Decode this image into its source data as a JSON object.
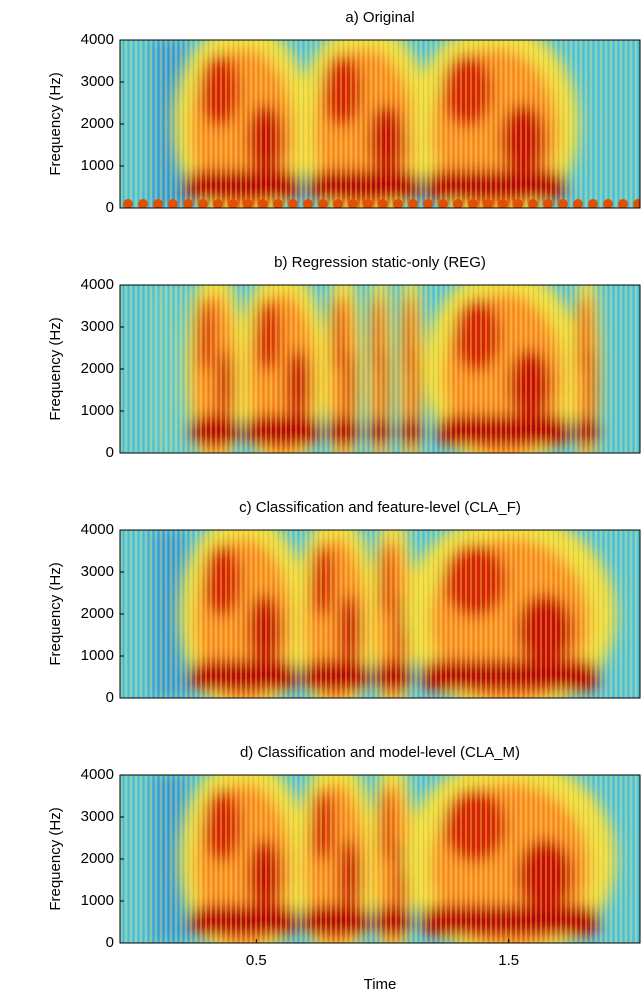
{
  "chart_data": [
    {
      "type": "spectrogram",
      "title": "a) Original",
      "ylabel": "Frequency (Hz)",
      "ylim": [
        0,
        4000
      ],
      "yticks": [
        0,
        1000,
        2000,
        3000,
        4000
      ],
      "xlim": [
        -0.04,
        2.02
      ]
    },
    {
      "type": "spectrogram",
      "title": "b) Regression static-only (REG)",
      "ylabel": "Frequency (Hz)",
      "ylim": [
        0,
        4000
      ],
      "yticks": [
        0,
        1000,
        2000,
        3000,
        4000
      ],
      "xlim": [
        -0.04,
        2.02
      ]
    },
    {
      "type": "spectrogram",
      "title": "c) Classification and feature-level (CLA_F)",
      "ylabel": "Frequency (Hz)",
      "ylim": [
        0,
        4000
      ],
      "yticks": [
        0,
        1000,
        2000,
        3000,
        4000
      ],
      "xlim": [
        -0.04,
        2.02
      ]
    },
    {
      "type": "spectrogram",
      "title": "d) Classification and model-level (CLA_M)",
      "ylabel": "Frequency (Hz)",
      "ylim": [
        0,
        4000
      ],
      "yticks": [
        0,
        1000,
        2000,
        3000,
        4000
      ],
      "xlim": [
        -0.04,
        2.02
      ],
      "xticks": [
        0.5,
        1.5
      ],
      "xlabel": "Time"
    }
  ]
}
